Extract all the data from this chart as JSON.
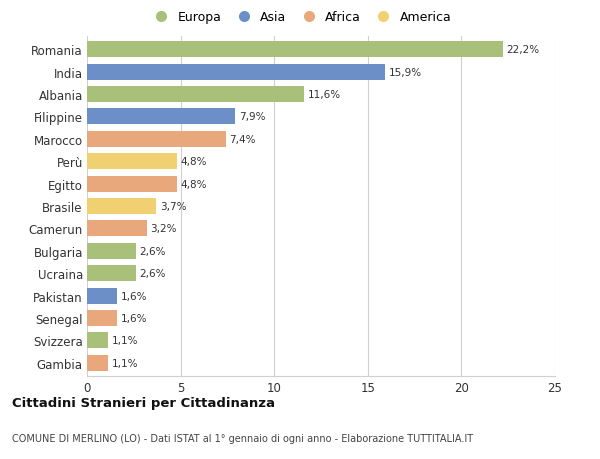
{
  "countries": [
    "Romania",
    "India",
    "Albania",
    "Filippine",
    "Marocco",
    "Perù",
    "Egitto",
    "Brasile",
    "Camerun",
    "Bulgaria",
    "Ucraina",
    "Pakistan",
    "Senegal",
    "Svizzera",
    "Gambia"
  ],
  "values": [
    22.2,
    15.9,
    11.6,
    7.9,
    7.4,
    4.8,
    4.8,
    3.7,
    3.2,
    2.6,
    2.6,
    1.6,
    1.6,
    1.1,
    1.1
  ],
  "labels": [
    "22,2%",
    "15,9%",
    "11,6%",
    "7,9%",
    "7,4%",
    "4,8%",
    "4,8%",
    "3,7%",
    "3,2%",
    "2,6%",
    "2,6%",
    "1,6%",
    "1,6%",
    "1,1%",
    "1,1%"
  ],
  "colors": [
    "#a8c07a",
    "#6d8fc7",
    "#a8c07a",
    "#6d8fc7",
    "#e8a87c",
    "#f0d070",
    "#e8a87c",
    "#f0d070",
    "#e8a87c",
    "#a8c07a",
    "#a8c07a",
    "#6d8fc7",
    "#e8a87c",
    "#a8c07a",
    "#e8a87c"
  ],
  "legend_labels": [
    "Europa",
    "Asia",
    "Africa",
    "America"
  ],
  "legend_colors": [
    "#a8c07a",
    "#6d8fc7",
    "#e8a87c",
    "#f0d070"
  ],
  "title": "Cittadini Stranieri per Cittadinanza",
  "subtitle": "COMUNE DI MERLINO (LO) - Dati ISTAT al 1° gennaio di ogni anno - Elaborazione TUTTITALIA.IT",
  "xlim": [
    0,
    25
  ],
  "xticks": [
    0,
    5,
    10,
    15,
    20,
    25
  ],
  "background_color": "#ffffff",
  "grid_color": "#d0d0d0"
}
